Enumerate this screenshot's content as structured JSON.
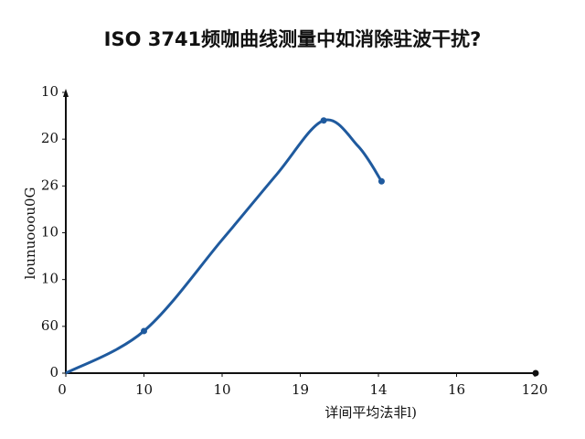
{
  "chart_data": {
    "type": "line",
    "title": "ISO 3741频咖曲线测量中如消除驻波干扰?",
    "xlabel": "详间平均法非l)",
    "ylabel": "lounuooou0G",
    "xlim": [
      0,
      6
    ],
    "ylim": [
      0,
      6
    ],
    "xticks": [
      0,
      {
        "value": 1,
        "label": "10"
      },
      {
        "value": 2,
        "label": "10"
      },
      {
        "value": 3,
        "label": "19"
      },
      {
        "value": 4,
        "label": "14"
      },
      {
        "value": 5,
        "label": "16"
      },
      {
        "value": 6,
        "label": "120"
      }
    ],
    "yticks": [
      0,
      {
        "value": 1,
        "label": "60"
      },
      {
        "value": 2,
        "label": "10"
      },
      {
        "value": 3,
        "label": "10"
      },
      {
        "value": 4,
        "label": "26"
      },
      {
        "value": 5,
        "label": "20"
      },
      {
        "value": 6,
        "label": "10"
      }
    ],
    "x": [
      0,
      1,
      2,
      2.7,
      3.3,
      3.74,
      4.04
    ],
    "series": [
      {
        "color": "#1f5a9e",
        "values": [
          0,
          0.9,
          2.85,
          4.25,
          5.4,
          4.85,
          4.1
        ],
        "marker_indices": [
          1,
          4,
          6
        ]
      }
    ]
  }
}
